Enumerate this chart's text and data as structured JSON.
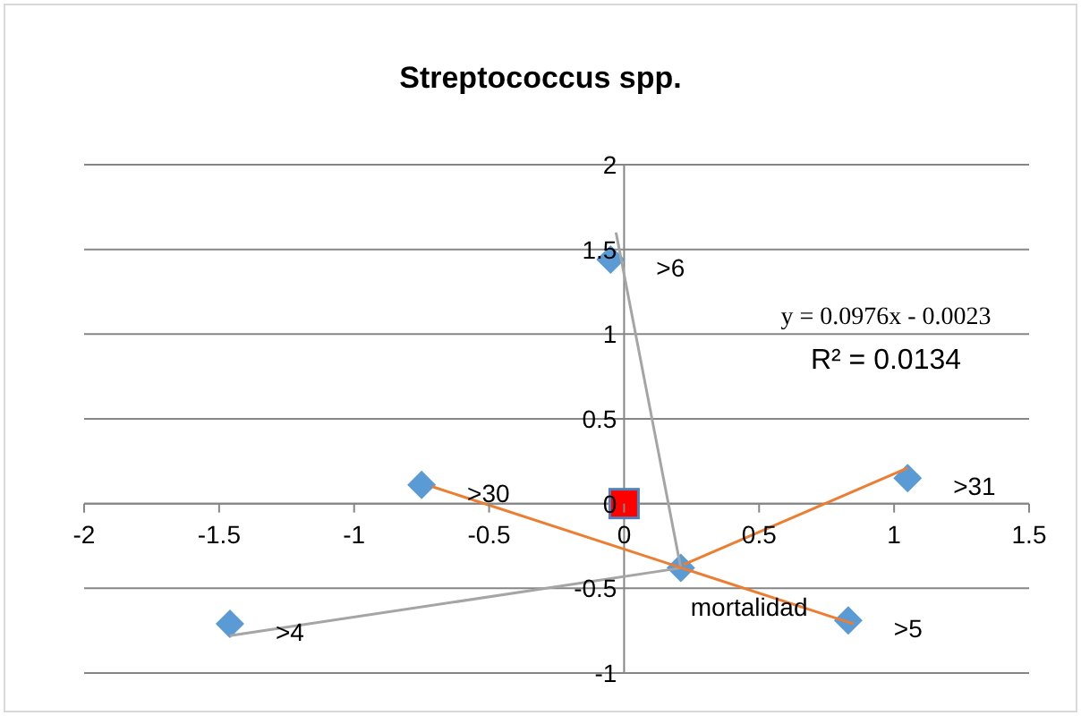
{
  "chart_data": {
    "type": "scatter",
    "title": "Streptococcus spp.",
    "xlim": [
      -2,
      1.5
    ],
    "xticks": [
      -2,
      -1.5,
      -1,
      -0.5,
      0,
      0.5,
      1,
      1.5
    ],
    "ylim": [
      -1,
      2
    ],
    "yticks": [
      -1,
      -0.5,
      0,
      0.5,
      1,
      1.5,
      2
    ],
    "grid": "y",
    "legend": false,
    "annotations": [
      "y = 0.0976x - 0.0023",
      "R² = 0.0134"
    ],
    "series": [
      {
        "color": "#5b9bd5",
        "marker": "diamond",
        "x": [
          -1.46,
          -0.75,
          -0.05,
          0.21,
          0.83,
          1.05
        ],
        "values": [
          -0.71,
          0.11,
          1.44,
          -0.38,
          -0.69,
          0.15
        ],
        "value_labels": [
          ">4",
          ">30",
          ">6",
          "mortalidad",
          ">5",
          ">31"
        ]
      },
      {
        "color": "#ff0000",
        "marker": "square",
        "x": [
          0
        ],
        "values": [
          0
        ]
      },
      {
        "type": "line",
        "color": "#a5a5a5",
        "marker": "none",
        "x": [
          -1.46,
          0.21,
          -0.03
        ],
        "values": [
          -0.78,
          -0.38,
          1.6
        ]
      },
      {
        "type": "line",
        "color": "#ed7d31",
        "marker": "none",
        "x": [
          -0.71,
          0.85
        ],
        "values": [
          0.1,
          -0.71
        ]
      },
      {
        "type": "line",
        "color": "#ed7d31",
        "marker": "none",
        "x": [
          0.22,
          1.05
        ],
        "values": [
          -0.36,
          0.21
        ]
      }
    ]
  }
}
